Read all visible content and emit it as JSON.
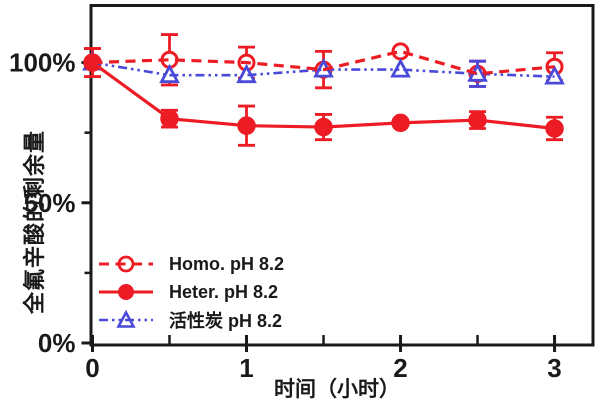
{
  "page": {
    "background": "#ffffff",
    "text_color": "#1a1a1a",
    "accent_red": "#ed1c24",
    "accent_blue": "#4a4ad9"
  },
  "chart_data": {
    "type": "line",
    "title": "",
    "xlabel": "时间（小时）",
    "ylabel": "全氟辛酸的剩余量",
    "xlim": [
      0,
      3.24
    ],
    "ylim": [
      0,
      120
    ],
    "grid": false,
    "legend_position": "lower-left",
    "x": [
      0,
      0.5,
      1,
      1.5,
      2,
      2.5,
      3
    ],
    "series": [
      {
        "name": "Homo. pH 8.2",
        "color": "#ed1c24",
        "line_style": "dashed",
        "marker": "open-circle",
        "values": [
          100,
          101,
          100,
          97.5,
          104,
          96,
          98.5
        ],
        "errors": [
          5,
          9,
          5.5,
          6.5,
          0,
          4.5,
          5
        ]
      },
      {
        "name": "Heter. pH 8.2",
        "color": "#ed1c24",
        "line_style": "solid",
        "marker": "filled-circle",
        "values": [
          100,
          80,
          77.5,
          77,
          78.5,
          79.5,
          76.5
        ],
        "errors": [
          5,
          3,
          7,
          4.5,
          0,
          3,
          4
        ]
      },
      {
        "name": "活性炭 pH 8.2",
        "color": "#4a4ad9",
        "line_style": "dash-dot-dot",
        "marker": "open-triangle",
        "values": [
          100,
          95.5,
          95.5,
          97.5,
          97.5,
          96,
          95
        ],
        "errors": [
          0,
          0,
          0,
          0,
          0,
          4.5,
          0
        ]
      }
    ],
    "y_ticks": [
      {
        "value": 100,
        "label": "100%"
      },
      {
        "value": 50,
        "label": "50%"
      },
      {
        "value": 0,
        "label": "0%"
      }
    ],
    "y_minor_ticks": [
      75,
      25
    ],
    "x_ticks": [
      {
        "value": 0,
        "label": "0"
      },
      {
        "value": 1,
        "label": "1"
      },
      {
        "value": 2,
        "label": "2"
      },
      {
        "value": 3,
        "label": "3"
      }
    ],
    "x_minor_ticks": [
      0.5,
      1.5,
      2.5
    ]
  }
}
